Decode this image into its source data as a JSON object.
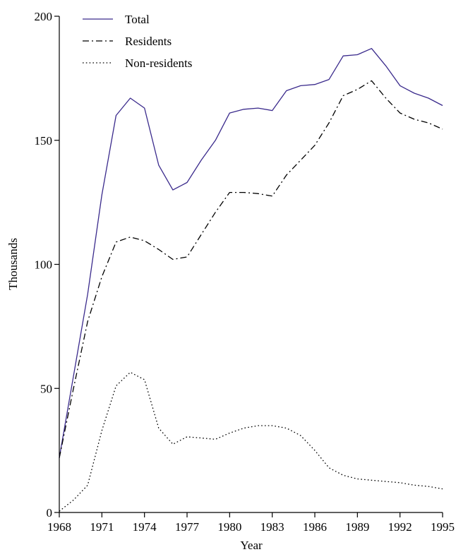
{
  "chart_data": {
    "type": "line",
    "xlabel": "Year",
    "ylabel": "Thousands",
    "xlim": [
      1968,
      1995
    ],
    "ylim": [
      0,
      200
    ],
    "x_ticks": [
      1968,
      1971,
      1974,
      1977,
      1980,
      1983,
      1986,
      1989,
      1992,
      1995
    ],
    "y_ticks": [
      0,
      50,
      100,
      150,
      200
    ],
    "grid": false,
    "legend_position": "top-left",
    "x": [
      1968,
      1969,
      1970,
      1971,
      1972,
      1973,
      1974,
      1975,
      1976,
      1977,
      1978,
      1979,
      1980,
      1981,
      1982,
      1983,
      1984,
      1985,
      1986,
      1987,
      1988,
      1989,
      1990,
      1991,
      1992,
      1993,
      1994,
      1995
    ],
    "series": [
      {
        "name": "Total",
        "style": "solid",
        "color": "#3a2a8c",
        "values": [
          22,
          55,
          88,
          128,
          160,
          167,
          163,
          140,
          130,
          133,
          142,
          150,
          161,
          162.5,
          163,
          162,
          170,
          172,
          172.5,
          174.5,
          184,
          184.5,
          187,
          180,
          172,
          169,
          167,
          164
        ]
      },
      {
        "name": "Residents",
        "style": "dashdot",
        "color": "#000000",
        "values": [
          22,
          50,
          77,
          95,
          109,
          111,
          109.5,
          106,
          102,
          103,
          112,
          121,
          129,
          129,
          128.5,
          127.5,
          136,
          142,
          148,
          157,
          168,
          170.5,
          174,
          167,
          161,
          158.5,
          157,
          154.5
        ]
      },
      {
        "name": "Non-residents",
        "style": "dotted",
        "color": "#000000",
        "values": [
          0.5,
          5,
          11,
          33,
          51,
          56.5,
          53.5,
          34,
          27.5,
          30.5,
          30,
          29.5,
          32,
          34,
          35,
          35,
          34,
          31,
          25,
          18,
          15,
          13.5,
          13,
          12.5,
          12,
          11,
          10.5,
          9.5
        ]
      }
    ]
  }
}
